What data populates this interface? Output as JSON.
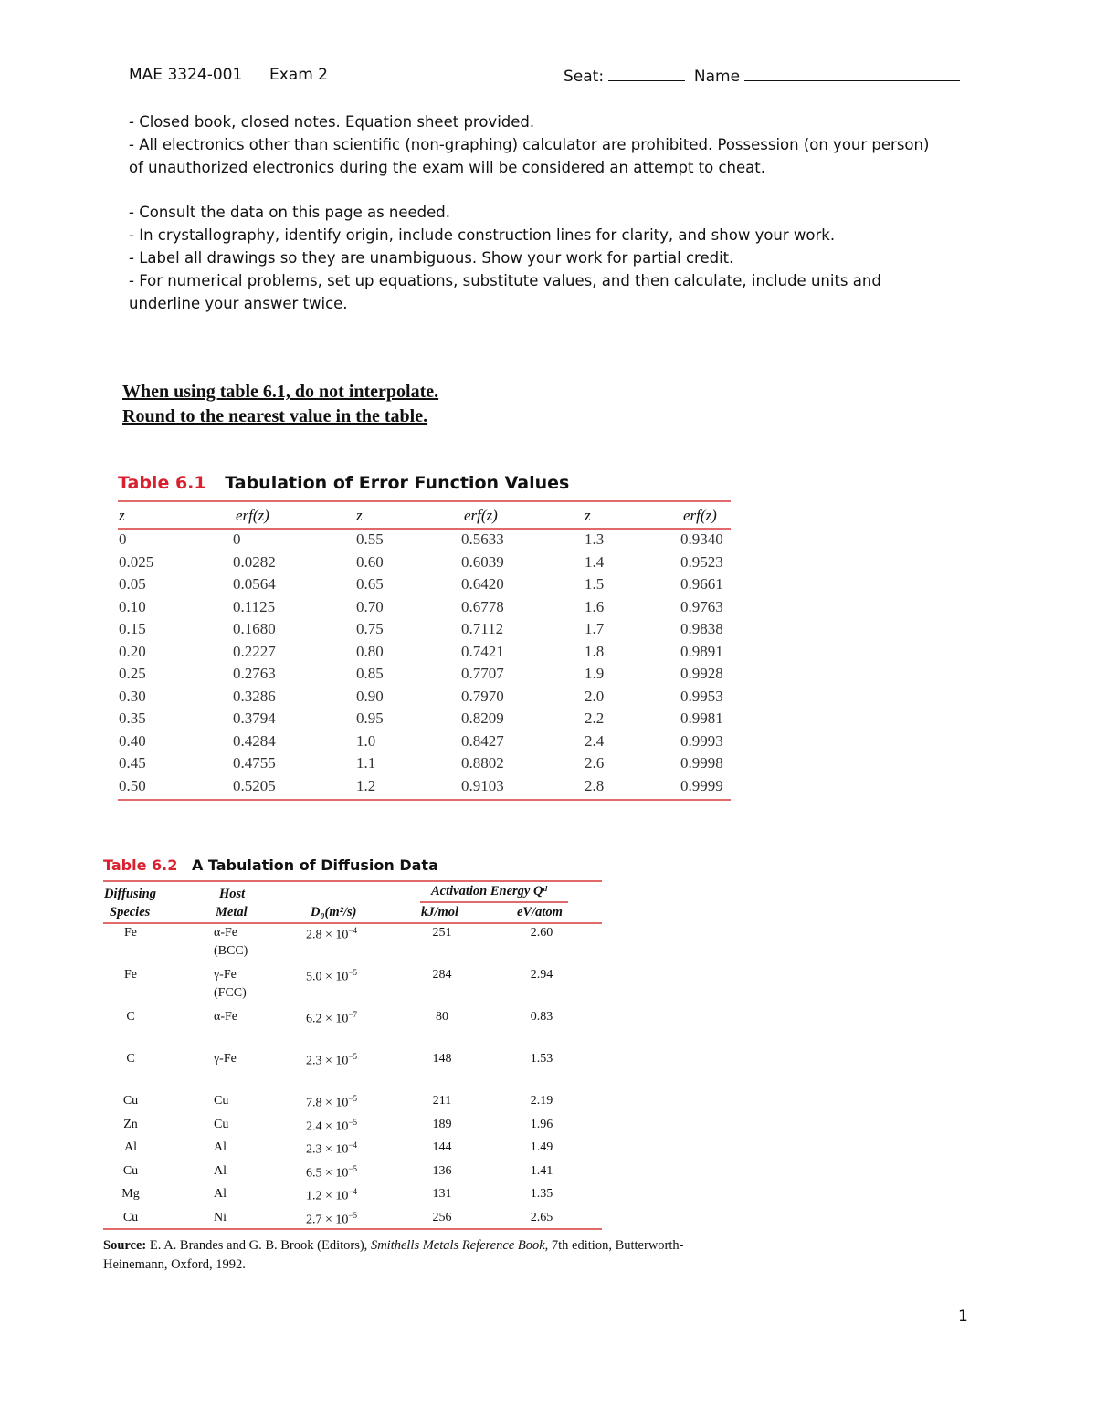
{
  "header": {
    "course": "MAE 3324-001",
    "exam": "Exam 2",
    "seat_label": "Seat:",
    "name_label": "Name",
    "page_number": "1"
  },
  "instructions": [
    "- Closed book, closed notes. Equation sheet provided.",
    "- All electronics other than scientific (non-graphing) calculator are prohibited.  Possession (on your person) of unauthorized electronics during the exam will be considered an attempt to cheat.",
    "- Consult the data on this page as needed.",
    "- In crystallography, identify origin, include construction lines for clarity, and show your work.",
    "- Label all drawings so they are unambiguous.  Show your work for partial credit.",
    "- For numerical problems, set up equations, substitute values, and then calculate, include units and underline your answer twice."
  ],
  "notice": [
    "When using table 6.1, do not interpolate.",
    "Round to the nearest value in the table."
  ],
  "colors": {
    "accent": "#d8202f",
    "rule": "#e06a6a"
  },
  "table61": {
    "label": "Table 6.1",
    "title": "Tabulation of Error Function Values",
    "headers": [
      "z",
      "erf(z)",
      "z",
      "erf(z)",
      "z",
      "erf(z)"
    ],
    "rows": [
      [
        "0",
        "0",
        "0.55",
        "0.5633",
        "1.3",
        "0.9340"
      ],
      [
        "0.025",
        "0.0282",
        "0.60",
        "0.6039",
        "1.4",
        "0.9523"
      ],
      [
        "0.05",
        "0.0564",
        "0.65",
        "0.6420",
        "1.5",
        "0.9661"
      ],
      [
        "0.10",
        "0.1125",
        "0.70",
        "0.6778",
        "1.6",
        "0.9763"
      ],
      [
        "0.15",
        "0.1680",
        "0.75",
        "0.7112",
        "1.7",
        "0.9838"
      ],
      [
        "0.20",
        "0.2227",
        "0.80",
        "0.7421",
        "1.8",
        "0.9891"
      ],
      [
        "0.25",
        "0.2763",
        "0.85",
        "0.7707",
        "1.9",
        "0.9928"
      ],
      [
        "0.30",
        "0.3286",
        "0.90",
        "0.7970",
        "2.0",
        "0.9953"
      ],
      [
        "0.35",
        "0.3794",
        "0.95",
        "0.8209",
        "2.2",
        "0.9981"
      ],
      [
        "0.40",
        "0.4284",
        "1.0",
        "0.8427",
        "2.4",
        "0.9993"
      ],
      [
        "0.45",
        "0.4755",
        "1.1",
        "0.8802",
        "2.6",
        "0.9998"
      ],
      [
        "0.50",
        "0.5205",
        "1.2",
        "0.9103",
        "2.8",
        "0.9999"
      ]
    ]
  },
  "table62": {
    "label": "Table 6.2",
    "title": "A Tabulation of Diffusion Data",
    "headers": {
      "species": [
        "Diffusing",
        "Species"
      ],
      "host": [
        "Host",
        "Metal"
      ],
      "d0": "D₀(m²/s)",
      "activation": "Activation Energy Qᵈ",
      "kj": "kJ/mol",
      "ev": "eV/atom"
    },
    "rows": [
      {
        "species": "Fe",
        "host": "α-Fe",
        "host2": "(BCC)",
        "d0": "2.8 × 10",
        "exp": "−4",
        "kj": "251",
        "ev": "2.60"
      },
      {
        "species": "Fe",
        "host": "γ-Fe",
        "host2": "(FCC)",
        "d0": "5.0 × 10",
        "exp": "−5",
        "kj": "284",
        "ev": "2.94"
      },
      {
        "species": "C",
        "host": "α-Fe",
        "d0": "6.2 × 10",
        "exp": "−7",
        "kj": "80",
        "ev": "0.83"
      },
      {
        "species": "C",
        "host": "γ-Fe",
        "d0": "2.3 × 10",
        "exp": "−5",
        "kj": "148",
        "ev": "1.53"
      },
      {
        "species": "Cu",
        "host": "Cu",
        "d0": "7.8 × 10",
        "exp": "−5",
        "kj": "211",
        "ev": "2.19"
      },
      {
        "species": "Zn",
        "host": "Cu",
        "d0": "2.4 × 10",
        "exp": "−5",
        "kj": "189",
        "ev": "1.96"
      },
      {
        "species": "Al",
        "host": "Al",
        "d0": "2.3 × 10",
        "exp": "−4",
        "kj": "144",
        "ev": "1.49"
      },
      {
        "species": "Cu",
        "host": "Al",
        "d0": "6.5 × 10",
        "exp": "−5",
        "kj": "136",
        "ev": "1.41"
      },
      {
        "species": "Mg",
        "host": "Al",
        "d0": "1.2 × 10",
        "exp": "−4",
        "kj": "131",
        "ev": "1.35"
      },
      {
        "species": "Cu",
        "host": "Ni",
        "d0": "2.7 × 10",
        "exp": "−5",
        "kj": "256",
        "ev": "2.65"
      }
    ],
    "source_label": "Source:",
    "source_text1": " E. A. Brandes and G. B. Brook (Editors), ",
    "source_italic": "Smithells Metals Reference Book,",
    "source_text2": " 7th edition, Butterworth-",
    "source_text3": "Heinemann, Oxford, 1992."
  }
}
